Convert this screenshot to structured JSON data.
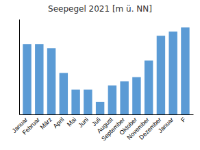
{
  "chart_data": {
    "type": "bar",
    "title": "Seepegel 2021 [m ü. NN]",
    "categories": [
      "Januar",
      "Februar",
      "März",
      "April",
      "Mai",
      "Juni",
      "Juli",
      "August",
      "September",
      "Oktober",
      "November",
      "Dezember",
      "Januar",
      "F"
    ],
    "values": [
      835,
      835,
      834,
      828,
      824,
      824,
      821,
      825,
      826,
      827,
      831,
      837,
      838,
      839
    ],
    "color": "#5b9bd5",
    "ylim": [
      818,
      841
    ],
    "grid": false,
    "tick_labels": "x"
  }
}
